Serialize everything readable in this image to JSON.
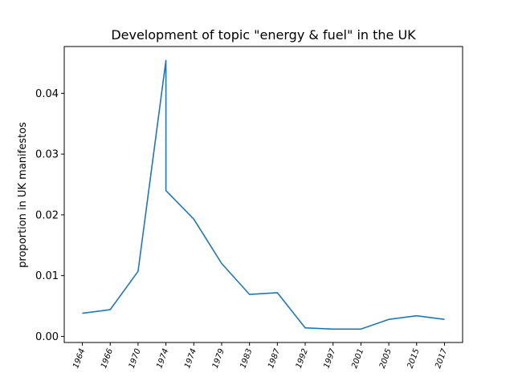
{
  "chart_data": {
    "type": "line",
    "title": "Development of topic \"energy & fuel\" in the UK",
    "xlabel": "",
    "ylabel": "proportion in UK manifestos",
    "categories": [
      "1964",
      "1966",
      "1970",
      "1974",
      "1974",
      "1974",
      "1979",
      "1983",
      "1987",
      "1992",
      "1997",
      "2001",
      "2005",
      "2015",
      "2017"
    ],
    "x": [
      0,
      1,
      2,
      3,
      3,
      4,
      5,
      6,
      7,
      8,
      9,
      10,
      11,
      12,
      13
    ],
    "values": [
      0.0038,
      0.0044,
      0.0107,
      0.0454,
      0.024,
      0.0193,
      0.012,
      0.0069,
      0.0072,
      0.0014,
      0.0012,
      0.0012,
      0.0028,
      0.0034,
      0.0028
    ],
    "xticks": [
      "1964",
      "1966",
      "1970",
      "1974",
      "1974",
      "1979",
      "1983",
      "1987",
      "1992",
      "1997",
      "2001",
      "2005",
      "2015",
      "2017"
    ],
    "yticks": [
      "0.00",
      "0.01",
      "0.02",
      "0.03",
      "0.04"
    ],
    "ylim": [
      -0.001,
      0.0477
    ],
    "grid": false,
    "colors": {
      "line": "#1f77b4",
      "axes": "#000000"
    }
  }
}
